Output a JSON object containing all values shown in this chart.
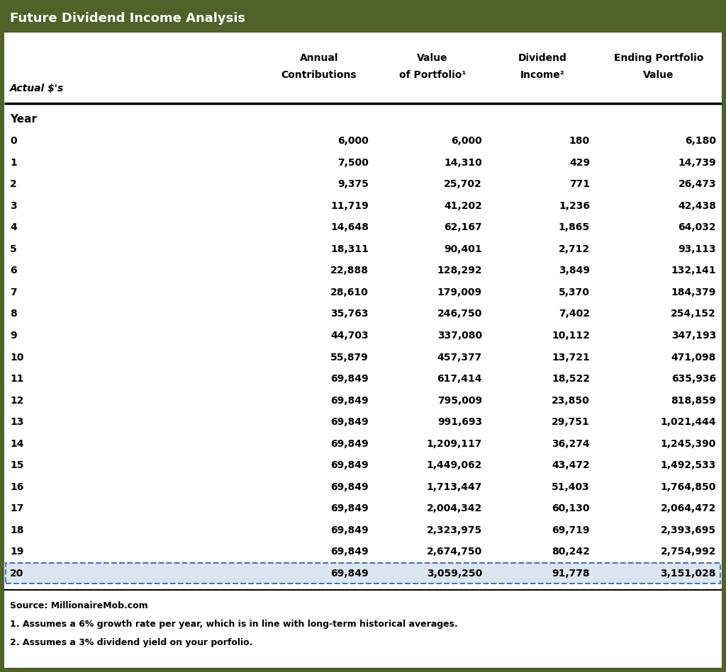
{
  "title": "Future Dividend Income Analysis",
  "subtitle_italic": "Actual $'s",
  "col_headers": [
    [
      "Annual",
      "Contributions"
    ],
    [
      "Value",
      "of Portfolio¹"
    ],
    [
      "Dividend",
      "Income²"
    ],
    [
      "Ending Portfolio",
      "Value"
    ]
  ],
  "section_label": "Year",
  "rows": [
    [
      0,
      "6,000",
      "6,000",
      "180",
      "6,180"
    ],
    [
      1,
      "7,500",
      "14,310",
      "429",
      "14,739"
    ],
    [
      2,
      "9,375",
      "25,702",
      "771",
      "26,473"
    ],
    [
      3,
      "11,719",
      "41,202",
      "1,236",
      "42,438"
    ],
    [
      4,
      "14,648",
      "62,167",
      "1,865",
      "64,032"
    ],
    [
      5,
      "18,311",
      "90,401",
      "2,712",
      "93,113"
    ],
    [
      6,
      "22,888",
      "128,292",
      "3,849",
      "132,141"
    ],
    [
      7,
      "28,610",
      "179,009",
      "5,370",
      "184,379"
    ],
    [
      8,
      "35,763",
      "246,750",
      "7,402",
      "254,152"
    ],
    [
      9,
      "44,703",
      "337,080",
      "10,112",
      "347,193"
    ],
    [
      10,
      "55,879",
      "457,377",
      "13,721",
      "471,098"
    ],
    [
      11,
      "69,849",
      "617,414",
      "18,522",
      "635,936"
    ],
    [
      12,
      "69,849",
      "795,009",
      "23,850",
      "818,859"
    ],
    [
      13,
      "69,849",
      "991,693",
      "29,751",
      "1,021,444"
    ],
    [
      14,
      "69,849",
      "1,209,117",
      "36,274",
      "1,245,390"
    ],
    [
      15,
      "69,849",
      "1,449,062",
      "43,472",
      "1,492,533"
    ],
    [
      16,
      "69,849",
      "1,713,447",
      "51,403",
      "1,764,850"
    ],
    [
      17,
      "69,849",
      "2,004,342",
      "60,130",
      "2,064,472"
    ],
    [
      18,
      "69,849",
      "2,323,975",
      "69,719",
      "2,393,695"
    ],
    [
      19,
      "69,849",
      "2,674,750",
      "80,242",
      "2,754,992"
    ],
    [
      20,
      "69,849",
      "3,059,250",
      "91,778",
      "3,151,028"
    ]
  ],
  "highlighted_row": 20,
  "highlight_color": "#dce6f1",
  "highlight_border_color": "#4472c4",
  "bg_color": "#4f6228",
  "table_bg": "#ffffff",
  "text_color": "#000000",
  "title_color": "#ffffff",
  "footnotes": [
    "Source: MillionaireMob.com",
    "1. Assumes a 6% growth rate per year, which is in line with long-term historical averages.",
    "2. Assumes a 3% dividend yield on your porfolio."
  ]
}
